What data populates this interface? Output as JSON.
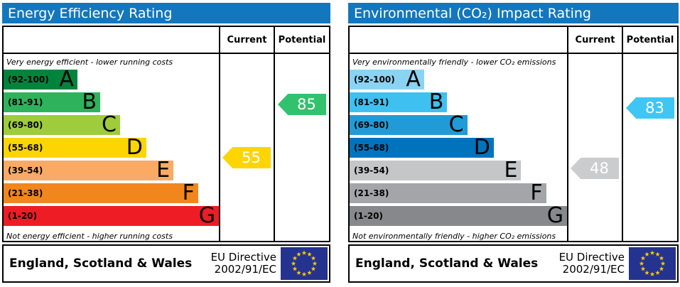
{
  "colors": {
    "header_bar": "#1377bd",
    "border": "#000000",
    "eu_flag_field": "#24338f",
    "eu_flag_stars": "#ffcc00"
  },
  "chart_data": [
    {
      "type": "bar",
      "title": "Energy Efficiency Rating",
      "categories": [
        "A (92-100)",
        "B (81-91)",
        "C (69-80)",
        "D (55-68)",
        "E (39-54)",
        "F (21-38)",
        "G (1-20)"
      ],
      "scale": [
        1,
        100
      ],
      "current": 55,
      "current_band": "D",
      "potential": 85,
      "potential_band": "B",
      "top_note": "Very energy efficient - lower running costs",
      "bottom_note": "Not energy efficient - higher running costs"
    },
    {
      "type": "bar",
      "title": "Environmental (CO₂) Impact Rating",
      "categories": [
        "A (92-100)",
        "B (81-91)",
        "C (69-80)",
        "D (55-68)",
        "E (39-54)",
        "F (21-38)",
        "G (1-20)"
      ],
      "scale": [
        1,
        100
      ],
      "current": 48,
      "current_band": "E",
      "potential": 83,
      "potential_band": "B",
      "top_note": "Very environmentally friendly - lower CO₂ emissions",
      "bottom_note": "Not environmentally friendly - higher CO₂ emissions"
    }
  ],
  "panels": [
    {
      "title": "Energy Efficiency Rating",
      "col_current": "Current",
      "col_potential": "Potential",
      "top_note": "Very energy efficient - lower running costs",
      "bottom_note": "Not energy efficient - higher running costs",
      "bands": [
        {
          "range": "(92-100)",
          "letter": "A",
          "min": 92,
          "max": 100,
          "color": "#00843d",
          "width_pct": 34.3
        },
        {
          "range": "(81-91)",
          "letter": "B",
          "min": 81,
          "max": 91,
          "color": "#2eb35c",
          "width_pct": 44.9
        },
        {
          "range": "(69-80)",
          "letter": "C",
          "min": 69,
          "max": 80,
          "color": "#9ecc3b",
          "width_pct": 54.1
        },
        {
          "range": "(55-68)",
          "letter": "D",
          "min": 55,
          "max": 68,
          "color": "#fed500",
          "width_pct": 66.3
        },
        {
          "range": "(39-54)",
          "letter": "E",
          "min": 39,
          "max": 54,
          "color": "#fbaa65",
          "width_pct": 78.9
        },
        {
          "range": "(21-38)",
          "letter": "F",
          "min": 21,
          "max": 38,
          "color": "#f1861d",
          "width_pct": 90.4
        },
        {
          "range": "(1-20)",
          "letter": "G",
          "min": 1,
          "max": 20,
          "color": "#ee1c25",
          "width_pct": 100
        }
      ],
      "current": {
        "value": 55,
        "color": "#fed500"
      },
      "potential": {
        "value": 85,
        "color": "#32c16d"
      },
      "footer": {
        "region": "England, Scotland & Wales",
        "directive_line1": "EU Directive",
        "directive_line2": "2002/91/EC"
      }
    },
    {
      "title": "Environmental (CO₂) Impact Rating",
      "col_current": "Current",
      "col_potential": "Potential",
      "top_note": "Very environmentally friendly - lower CO₂ emissions",
      "bottom_note": "Not environmentally friendly - higher CO₂ emissions",
      "bands": [
        {
          "range": "(92-100)",
          "letter": "A",
          "min": 92,
          "max": 100,
          "color": "#8bd3f3",
          "width_pct": 34.3
        },
        {
          "range": "(81-91)",
          "letter": "B",
          "min": 81,
          "max": 91,
          "color": "#3ec1f0",
          "width_pct": 44.9
        },
        {
          "range": "(69-80)",
          "letter": "C",
          "min": 69,
          "max": 80,
          "color": "#219bd8",
          "width_pct": 54.1
        },
        {
          "range": "(55-68)",
          "letter": "D",
          "min": 55,
          "max": 68,
          "color": "#0073bd",
          "width_pct": 66.3
        },
        {
          "range": "(39-54)",
          "letter": "E",
          "min": 39,
          "max": 54,
          "color": "#c5c6c8",
          "width_pct": 78.9
        },
        {
          "range": "(21-38)",
          "letter": "F",
          "min": 21,
          "max": 38,
          "color": "#a3a5a8",
          "width_pct": 90.4
        },
        {
          "range": "(1-20)",
          "letter": "G",
          "min": 1,
          "max": 20,
          "color": "#86888b",
          "width_pct": 100
        }
      ],
      "current": {
        "value": 48,
        "color": "#cbcccd"
      },
      "potential": {
        "value": 83,
        "color": "#3fc6f4"
      },
      "footer": {
        "region": "England, Scotland & Wales",
        "directive_line1": "EU Directive",
        "directive_line2": "2002/91/EC"
      }
    }
  ]
}
